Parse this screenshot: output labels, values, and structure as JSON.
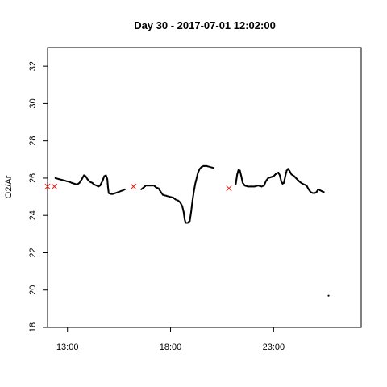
{
  "chart_data": {
    "type": "scatter",
    "title": "Day 30 - 2017-07-01 12:02:00",
    "xlabel": "",
    "ylabel": "O2/Ar",
    "xlim": [
      "12:02",
      "27:15"
    ],
    "ylim": [
      18,
      33
    ],
    "x_ticks": [
      {
        "value": "13:00",
        "label": "13:00"
      },
      {
        "value": "18:00",
        "label": "18:00"
      },
      {
        "value": "23:00",
        "label": "23:00"
      }
    ],
    "y_ticks": [
      18,
      20,
      22,
      24,
      26,
      28,
      30,
      32
    ],
    "grid": false,
    "legend": "none",
    "series": [
      {
        "marker": "dot",
        "color": "#000000",
        "segments": [
          [
            [
              "12:25",
              26.0
            ],
            [
              "12:35",
              25.95
            ],
            [
              "12:45",
              25.9
            ],
            [
              "12:55",
              25.85
            ],
            [
              "13:05",
              25.8
            ],
            [
              "13:12",
              25.75
            ],
            [
              "13:20",
              25.7
            ],
            [
              "13:28",
              25.65
            ],
            [
              "13:35",
              25.75
            ],
            [
              "13:42",
              25.95
            ],
            [
              "13:48",
              26.15
            ],
            [
              "13:53",
              26.1
            ],
            [
              "13:58",
              25.95
            ],
            [
              "14:05",
              25.8
            ],
            [
              "14:12",
              25.75
            ],
            [
              "14:18",
              25.65
            ],
            [
              "14:25",
              25.6
            ],
            [
              "14:30",
              25.55
            ],
            [
              "14:35",
              25.6
            ],
            [
              "14:42",
              25.85
            ],
            [
              "14:47",
              26.1
            ],
            [
              "14:52",
              26.15
            ],
            [
              "14:56",
              25.95
            ],
            [
              "14:58",
              25.5
            ],
            [
              "15:00",
              25.2
            ],
            [
              "15:05",
              25.15
            ],
            [
              "15:12",
              25.15
            ],
            [
              "15:20",
              25.2
            ],
            [
              "15:28",
              25.25
            ],
            [
              "15:35",
              25.3
            ],
            [
              "15:42",
              25.35
            ],
            [
              "15:47",
              25.4
            ]
          ],
          [
            [
              "16:35",
              25.4
            ],
            [
              "16:42",
              25.5
            ],
            [
              "16:48",
              25.6
            ],
            [
              "16:55",
              25.6
            ],
            [
              "17:05",
              25.6
            ],
            [
              "17:12",
              25.6
            ],
            [
              "17:18",
              25.5
            ],
            [
              "17:25",
              25.45
            ],
            [
              "17:32",
              25.25
            ],
            [
              "17:38",
              25.1
            ],
            [
              "17:48",
              25.05
            ],
            [
              "17:58",
              25.0
            ],
            [
              "18:08",
              24.95
            ],
            [
              "18:15",
              24.85
            ],
            [
              "18:22",
              24.8
            ],
            [
              "18:28",
              24.7
            ],
            [
              "18:34",
              24.5
            ],
            [
              "18:38",
              24.2
            ],
            [
              "18:41",
              23.8
            ],
            [
              "18:44",
              23.6
            ],
            [
              "18:50",
              23.6
            ],
            [
              "18:56",
              23.7
            ],
            [
              "19:00",
              24.2
            ],
            [
              "19:04",
              24.8
            ],
            [
              "19:08",
              25.3
            ],
            [
              "19:12",
              25.7
            ],
            [
              "19:16",
              26.0
            ],
            [
              "19:20",
              26.3
            ],
            [
              "19:25",
              26.5
            ],
            [
              "19:30",
              26.6
            ],
            [
              "19:36",
              26.65
            ],
            [
              "19:45",
              26.65
            ],
            [
              "19:55",
              26.6
            ],
            [
              "20:05",
              26.55
            ]
          ],
          [
            [
              "21:10",
              25.7
            ],
            [
              "21:14",
              26.2
            ],
            [
              "21:18",
              26.45
            ],
            [
              "21:22",
              26.4
            ],
            [
              "21:26",
              26.1
            ],
            [
              "21:30",
              25.75
            ],
            [
              "21:36",
              25.6
            ],
            [
              "21:45",
              25.55
            ],
            [
              "21:55",
              25.55
            ],
            [
              "22:05",
              25.55
            ],
            [
              "22:15",
              25.6
            ],
            [
              "22:25",
              25.55
            ],
            [
              "22:32",
              25.6
            ],
            [
              "22:38",
              25.85
            ],
            [
              "22:44",
              26.0
            ],
            [
              "22:52",
              26.05
            ],
            [
              "23:00",
              26.1
            ],
            [
              "23:08",
              26.25
            ],
            [
              "23:14",
              26.3
            ],
            [
              "23:18",
              26.15
            ],
            [
              "23:22",
              25.85
            ],
            [
              "23:26",
              25.7
            ],
            [
              "23:30",
              25.75
            ],
            [
              "23:34",
              26.1
            ],
            [
              "23:38",
              26.4
            ],
            [
              "23:42",
              26.5
            ],
            [
              "23:46",
              26.4
            ],
            [
              "23:52",
              26.2
            ],
            [
              "24:00",
              26.1
            ],
            [
              "24:08",
              25.95
            ],
            [
              "24:16",
              25.8
            ],
            [
              "24:24",
              25.7
            ],
            [
              "24:30",
              25.65
            ],
            [
              "24:36",
              25.6
            ],
            [
              "24:42",
              25.4
            ],
            [
              "24:48",
              25.25
            ],
            [
              "24:54",
              25.2
            ],
            [
              "25:00",
              25.2
            ],
            [
              "25:05",
              25.25
            ],
            [
              "25:10",
              25.4
            ],
            [
              "25:15",
              25.35
            ],
            [
              "25:20",
              25.3
            ],
            [
              "25:26",
              25.25
            ]
          ],
          [
            [
              "25:40",
              19.7
            ]
          ]
        ]
      },
      {
        "marker": "cross",
        "color": "#e8170f",
        "points": [
          [
            "12:02",
            25.55
          ],
          [
            "12:22",
            25.55
          ],
          [
            "16:12",
            25.55
          ],
          [
            "20:50",
            25.45
          ]
        ]
      }
    ]
  }
}
